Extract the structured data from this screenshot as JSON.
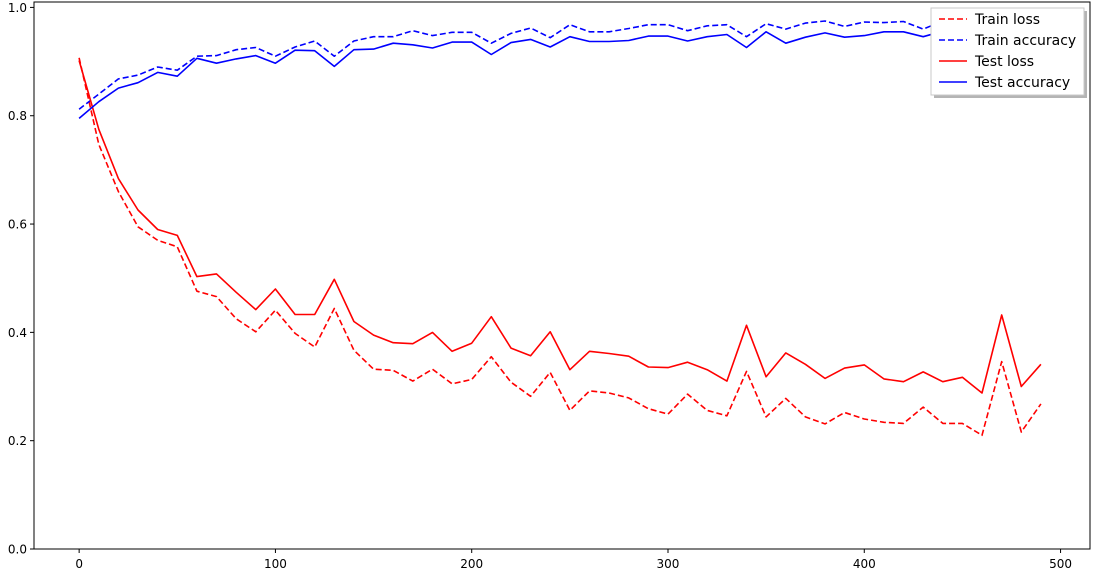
{
  "chart_data": {
    "type": "line",
    "title": "",
    "xlabel": "",
    "ylabel": "",
    "xlim": [
      -23,
      515
    ],
    "ylim": [
      0.0,
      1.01
    ],
    "grid": false,
    "legend_position": "top-right",
    "xticks": [
      0,
      100,
      200,
      300,
      400,
      500
    ],
    "yticks": [
      0.0,
      0.2,
      0.4,
      0.6,
      0.8,
      1.0
    ],
    "xtick_labels": [
      "0",
      "100",
      "200",
      "300",
      "400",
      "500"
    ],
    "ytick_labels": [
      "0.0",
      "0.2",
      "0.4",
      "0.6",
      "0.8",
      "1.0"
    ],
    "x": [
      0,
      10,
      20,
      30,
      40,
      50,
      60,
      70,
      80,
      90,
      100,
      110,
      120,
      130,
      140,
      150,
      160,
      170,
      180,
      190,
      200,
      210,
      220,
      230,
      240,
      250,
      260,
      270,
      280,
      290,
      300,
      310,
      320,
      330,
      340,
      350,
      360,
      370,
      380,
      390,
      400,
      410,
      420,
      430,
      440,
      450,
      460,
      470,
      480,
      490
    ],
    "series": [
      {
        "name": "Train loss",
        "color": "#ff0000",
        "dash": true,
        "values": [
          0.907,
          0.747,
          0.66,
          0.595,
          0.57,
          0.558,
          0.476,
          0.466,
          0.425,
          0.401,
          0.441,
          0.398,
          0.373,
          0.444,
          0.367,
          0.332,
          0.33,
          0.31,
          0.332,
          0.305,
          0.313,
          0.355,
          0.308,
          0.282,
          0.326,
          0.256,
          0.292,
          0.288,
          0.279,
          0.259,
          0.249,
          0.286,
          0.256,
          0.246,
          0.328,
          0.244,
          0.278,
          0.244,
          0.231,
          0.252,
          0.24,
          0.234,
          0.232,
          0.262,
          0.232,
          0.232,
          0.21,
          0.346,
          0.216,
          0.268
        ]
      },
      {
        "name": "Train accuracy",
        "color": "#0000ff",
        "dash": true,
        "values": [
          0.812,
          0.84,
          0.868,
          0.875,
          0.89,
          0.884,
          0.91,
          0.911,
          0.922,
          0.926,
          0.91,
          0.927,
          0.938,
          0.91,
          0.938,
          0.946,
          0.946,
          0.957,
          0.948,
          0.954,
          0.954,
          0.934,
          0.952,
          0.962,
          0.944,
          0.968,
          0.955,
          0.955,
          0.961,
          0.968,
          0.968,
          0.957,
          0.966,
          0.968,
          0.946,
          0.97,
          0.96,
          0.971,
          0.975,
          0.965,
          0.973,
          0.972,
          0.974,
          0.96,
          0.975,
          0.969,
          0.968,
          0.983,
          0.975,
          0.975
        ]
      },
      {
        "name": "Test loss",
        "color": "#ff0000",
        "dash": false,
        "values": [
          0.902,
          0.775,
          0.684,
          0.626,
          0.59,
          0.579,
          0.503,
          0.508,
          0.474,
          0.442,
          0.48,
          0.433,
          0.433,
          0.498,
          0.42,
          0.395,
          0.381,
          0.379,
          0.4,
          0.365,
          0.38,
          0.429,
          0.371,
          0.357,
          0.401,
          0.331,
          0.365,
          0.361,
          0.356,
          0.336,
          0.335,
          0.345,
          0.331,
          0.31,
          0.413,
          0.318,
          0.362,
          0.341,
          0.315,
          0.334,
          0.34,
          0.314,
          0.309,
          0.327,
          0.309,
          0.317,
          0.288,
          0.432,
          0.3,
          0.341
        ]
      },
      {
        "name": "Test accuracy",
        "color": "#0000ff",
        "dash": false,
        "values": [
          0.795,
          0.826,
          0.851,
          0.861,
          0.88,
          0.873,
          0.906,
          0.897,
          0.905,
          0.911,
          0.897,
          0.921,
          0.92,
          0.891,
          0.922,
          0.923,
          0.934,
          0.931,
          0.925,
          0.936,
          0.936,
          0.913,
          0.935,
          0.941,
          0.927,
          0.946,
          0.937,
          0.937,
          0.939,
          0.947,
          0.947,
          0.938,
          0.946,
          0.95,
          0.926,
          0.955,
          0.934,
          0.945,
          0.953,
          0.945,
          0.948,
          0.955,
          0.955,
          0.946,
          0.956,
          0.952,
          0.95,
          0.966,
          0.956,
          0.956
        ]
      }
    ]
  }
}
